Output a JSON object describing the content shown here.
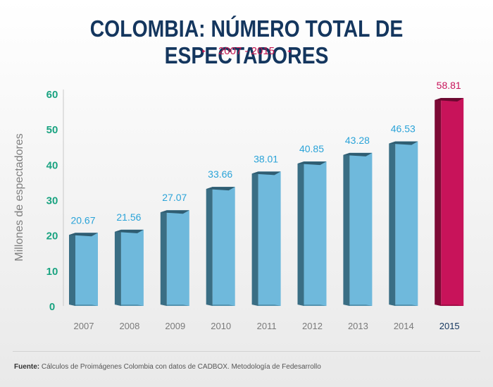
{
  "chart_data": {
    "type": "bar",
    "title": "COLOMBIA: NÚMERO TOTAL DE ESPECTADORES",
    "subtitle": "2007 - 2015",
    "ylabel": "Millones de espectadores",
    "xlabel": "",
    "ylim": [
      0,
      60
    ],
    "yticks": [
      0,
      10,
      20,
      30,
      40,
      50,
      60
    ],
    "categories": [
      "2007",
      "2008",
      "2009",
      "2010",
      "2011",
      "2012",
      "2013",
      "2014",
      "2015"
    ],
    "values": [
      20.67,
      21.56,
      27.07,
      33.66,
      38.01,
      40.85,
      43.28,
      46.53,
      58.81
    ],
    "value_labels": [
      "20.67",
      "21.56",
      "27.07",
      "33.66",
      "38.01",
      "40.85",
      "43.28",
      "46.53",
      "58.81"
    ],
    "highlight_category": "2015",
    "grid": false,
    "legend": "none"
  },
  "colors": {
    "bar_front": "#6fb9dc",
    "bar_side": "#3a6e84",
    "bar_top": "#2f5d72",
    "highlight_front": "#c8135a",
    "highlight_side": "#7d0a36",
    "highlight_top": "#6b0830",
    "value_label": "#2aa3d8",
    "highlight_label": "#c8135a",
    "ytick": "#1aa381",
    "xtick": "#7a7a7a",
    "xtick_highlight": "#14365e",
    "title": "#14365e",
    "subtitle": "#c5154e"
  },
  "decor": {
    "left_arrow": "▸",
    "right_arrow": "◂"
  },
  "footer": {
    "label": "Fuente:",
    "text": " Cálculos de Proimágenes Colombia con datos de CADBOX. Metodología de Fedesarrollo"
  }
}
